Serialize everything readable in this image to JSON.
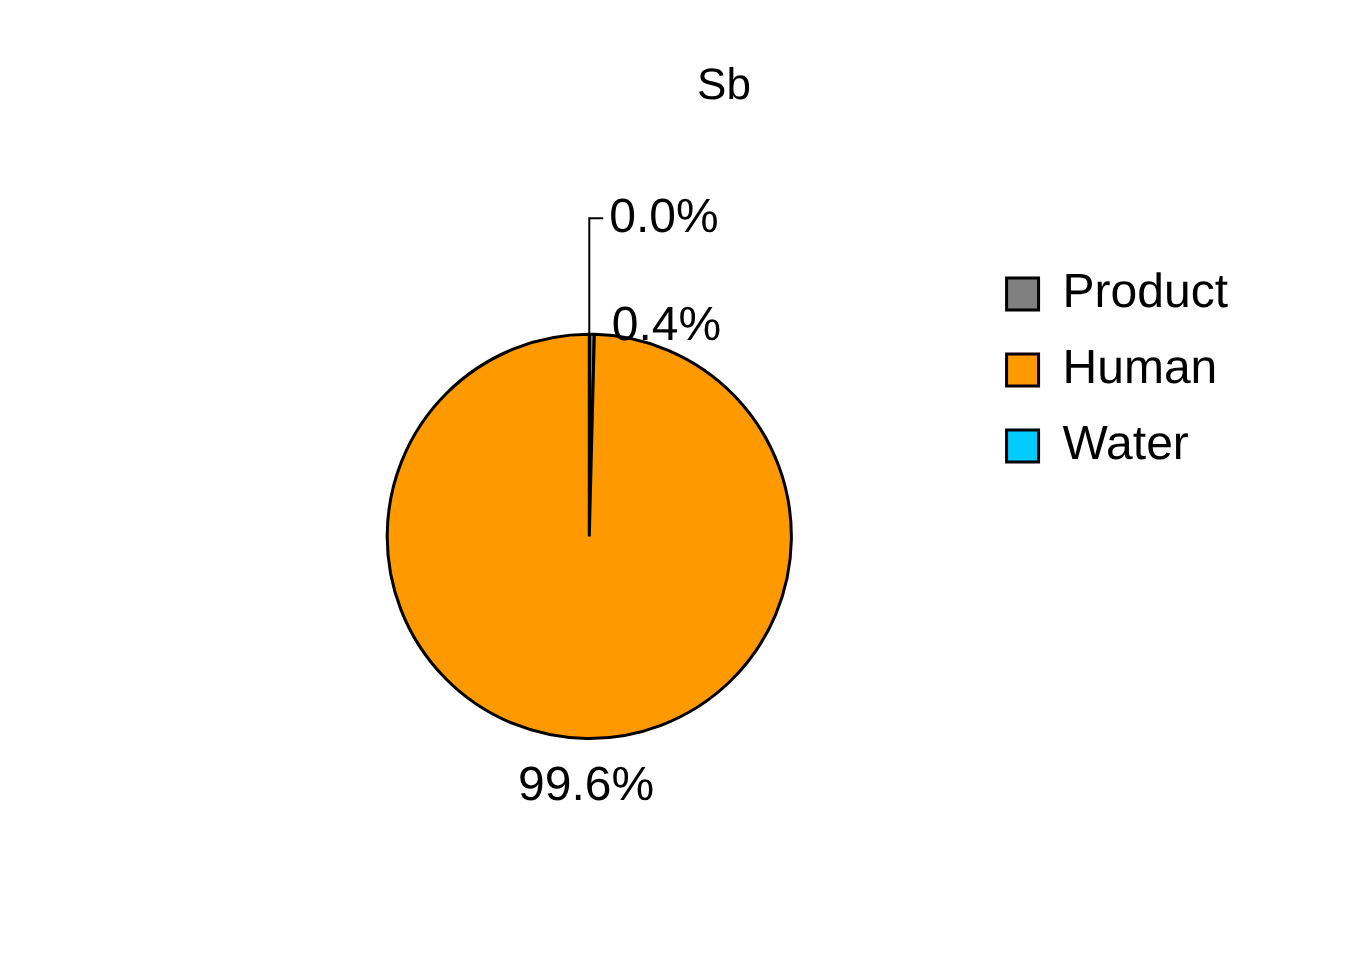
{
  "chart_data": {
    "type": "pie",
    "title": "Sb",
    "categories": [
      "Product",
      "Human",
      "Water"
    ],
    "values": [
      0.4,
      99.6,
      0.0
    ],
    "colors": [
      "#808080",
      "#ff9900",
      "#00ccff"
    ],
    "value_labels": [
      "0.4%",
      "99.6%",
      "0.0%"
    ],
    "legend": "right"
  }
}
